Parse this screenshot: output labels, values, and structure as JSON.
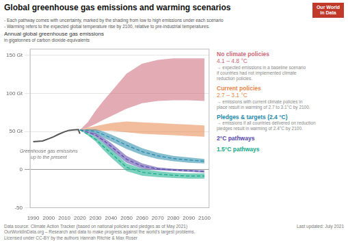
{
  "chart_data": {
    "type": "line",
    "title": "Global greenhouse gas emissions and warming scenarios",
    "subtitle": [
      "- Each pathway comes with uncertainty, marked by the shading from low to high emissions under each scenario",
      "- Warming refers to the expected global temperature rise by 2100, relative to pre-industrial temperatures."
    ],
    "y_label": [
      "Annual global greenhouse gas emissions",
      "in gigatonnes of carbon dioxide-equivalents"
    ],
    "logo": {
      "text": [
        "Our World",
        "in Data"
      ],
      "color": "#c0392b"
    },
    "xlim": [
      1988,
      2103
    ],
    "xticks": [
      1990,
      2000,
      2010,
      2020,
      2030,
      2040,
      2050,
      2060,
      2070,
      2080,
      2090,
      2100
    ],
    "ylim": [
      -50,
      158
    ],
    "yticks": [
      -50,
      0,
      {
        "value": 50,
        "label": "50 Gt"
      },
      {
        "value": 100,
        "label": "100 Gt"
      },
      {
        "value": 150,
        "label": "150 Gt"
      }
    ],
    "grid": "y",
    "series": [
      {
        "name": "No climate policies",
        "type": "band",
        "color": "#cc6677",
        "range_label": "4.1 – 4.8 °C",
        "note": "→ expected emissions in a baseline scenario\nif countries had not implemented climate\nreduction policies.",
        "x": [
          2020,
          2025,
          2030,
          2035,
          2040,
          2050,
          2060,
          2070,
          2080,
          2090,
          2100
        ],
        "low": [
          52,
          55,
          60,
          65,
          70,
          80,
          87,
          90,
          91,
          91,
          90
        ],
        "high": [
          52,
          62,
          77,
          90,
          102,
          126,
          139,
          144,
          146,
          146,
          146
        ]
      },
      {
        "name": "Current policies",
        "type": "band",
        "color": "#e8874a",
        "range_label": "2.7 – 3.1 °C",
        "note": "→ emissions with current climate policies in\nplace result in warming of 2.7 to 3.1°C by 2100.",
        "x": [
          2020,
          2025,
          2030,
          2035,
          2040,
          2050,
          2060,
          2070,
          2080,
          2090,
          2100
        ],
        "low": [
          52,
          51,
          51,
          51,
          51,
          49,
          47,
          46,
          45,
          44,
          43
        ],
        "high": [
          52,
          55,
          57,
          59,
          61,
          63,
          62,
          61,
          60,
          59,
          58
        ]
      },
      {
        "name": "Pledges & targets (2.4 °C)",
        "type": "band",
        "color": "#2288aa",
        "note": "→ emissions if all countries delivered on reduction\npledges result in warming of 2.4°C by 2100.",
        "line_style": "dashed",
        "x": [
          2020,
          2025,
          2030,
          2035,
          2040,
          2050,
          2060,
          2070,
          2080,
          2090,
          2100
        ],
        "low": [
          52,
          50,
          47,
          42,
          37,
          27,
          19,
          14,
          11,
          9,
          8
        ],
        "high": [
          52,
          53,
          53,
          50,
          46,
          37,
          28,
          22,
          18,
          16,
          14
        ],
        "values": [
          52,
          51.5,
          50,
          46,
          41.5,
          32,
          23.5,
          18,
          14.5,
          12.5,
          11
        ]
      },
      {
        "name": "2°C pathways",
        "type": "band",
        "color": "#5544aa",
        "line_style": "dashed",
        "x": [
          2020,
          2025,
          2030,
          2035,
          2040,
          2050,
          2060,
          2070,
          2080,
          2090,
          2100
        ],
        "low": [
          52,
          48,
          43,
          35,
          26,
          9,
          1,
          -1,
          -2,
          -3,
          -4
        ],
        "high": [
          52,
          50,
          48,
          42,
          35,
          18,
          8,
          3,
          1,
          0,
          -1
        ],
        "values": [
          52,
          49,
          45.5,
          38.5,
          30.5,
          13.5,
          4.5,
          1,
          -0.5,
          -1.5,
          -2.5
        ]
      },
      {
        "name": "1.5°C pathways",
        "type": "band",
        "color": "#11aa88",
        "line_style": "dashed",
        "x": [
          2020,
          2025,
          2030,
          2035,
          2040,
          2050,
          2060,
          2070,
          2080,
          2090,
          2100
        ],
        "low": [
          52,
          45,
          37,
          26,
          16,
          -2,
          -8,
          -10,
          -11,
          -12,
          -12
        ],
        "high": [
          52,
          48,
          43,
          35,
          27,
          8,
          1,
          -2,
          -4,
          -5,
          -5
        ],
        "values": [
          52,
          46.5,
          40,
          30.5,
          21.5,
          3,
          -3.5,
          -6,
          -7.5,
          -8.5,
          -8.5
        ]
      },
      {
        "type": "line",
        "color": "#555555",
        "x": [
          1990,
          1993,
          1996,
          2000,
          2003,
          2006,
          2010,
          2013,
          2016,
          2019,
          2020
        ],
        "values": [
          36.5,
          37.0,
          37.5,
          40.5,
          43.0,
          46.0,
          49.5,
          51.5,
          52.0,
          52.5,
          47.0
        ]
      }
    ],
    "annotations": [
      {
        "text": "Greenhouse gas emissions\nup to the present",
        "x": 2000,
        "y": 20
      }
    ],
    "source": "Data source: Climate Action Tracker (based on national policies and pledges as of May 2021)",
    "url": "OurWorldInData.org",
    "url_suffix": " – Research and data to make progress against the world's largest problems.",
    "last_updated": "Last updated: July 2021",
    "license": "Licensed under CC-BY by the authors Hannah Ritchie & Max Roser"
  }
}
